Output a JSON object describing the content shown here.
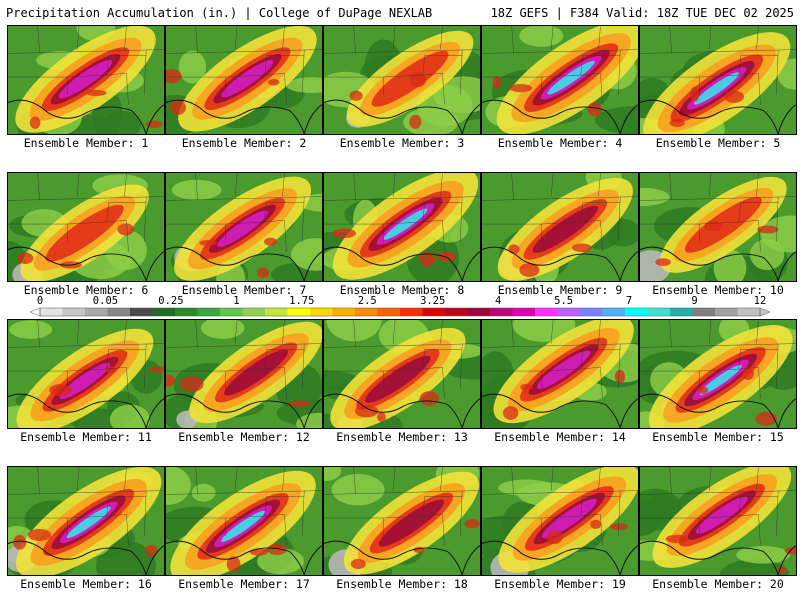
{
  "header": {
    "title": "Precipitation Accumulation (in.) | College of DuPage NEXLAB",
    "run_info": "18Z GEFS | F384 Valid: 18Z TUE DEC 02 2025"
  },
  "colorbar": {
    "labels": [
      "0",
      "0.05",
      "0.25",
      "1",
      "1.75",
      "2.5",
      "3.25",
      "4",
      "5.5",
      "7",
      "9",
      "12"
    ],
    "colors": [
      "#e3e3e3",
      "#c6c6c6",
      "#a8a8a8",
      "#878787",
      "#4a4a4a",
      "#1f6b21",
      "#2a8a2a",
      "#3ba83b",
      "#5fc84a",
      "#8fd450",
      "#c4e838",
      "#ffff00",
      "#ffd700",
      "#ffb000",
      "#ff8c00",
      "#ff6000",
      "#ff3000",
      "#e00000",
      "#c00018",
      "#a0003c",
      "#c0007c",
      "#e000b8",
      "#ff33ff",
      "#c060ff",
      "#8080ff",
      "#4cb0ff",
      "#00ffff",
      "#40e0d0",
      "#20b2aa",
      "#808080",
      "#a0a0a0",
      "#c0c0c0"
    ]
  },
  "members": [
    {
      "label": "Ensemble Member: 1",
      "intensity": 0.7
    },
    {
      "label": "Ensemble Member: 2",
      "intensity": 0.65
    },
    {
      "label": "Ensemble Member: 3",
      "intensity": 0.3
    },
    {
      "label": "Ensemble Member: 4",
      "intensity": 0.95
    },
    {
      "label": "Ensemble Member: 5",
      "intensity": 0.9
    },
    {
      "label": "Ensemble Member: 6",
      "intensity": 0.35
    },
    {
      "label": "Ensemble Member: 7",
      "intensity": 0.6
    },
    {
      "label": "Ensemble Member: 8",
      "intensity": 0.85
    },
    {
      "label": "Ensemble Member: 9",
      "intensity": 0.55
    },
    {
      "label": "Ensemble Member: 10",
      "intensity": 0.3
    },
    {
      "label": "Ensemble Member: 11",
      "intensity": 0.6
    },
    {
      "label": "Ensemble Member: 12",
      "intensity": 0.5
    },
    {
      "label": "Ensemble Member: 13",
      "intensity": 0.55
    },
    {
      "label": "Ensemble Member: 14",
      "intensity": 0.7
    },
    {
      "label": "Ensemble Member: 15",
      "intensity": 0.8
    },
    {
      "label": "Ensemble Member: 16",
      "intensity": 0.85
    },
    {
      "label": "Ensemble Member: 17",
      "intensity": 0.85
    },
    {
      "label": "Ensemble Member: 18",
      "intensity": 0.55
    },
    {
      "label": "Ensemble Member: 19",
      "intensity": 0.75
    },
    {
      "label": "Ensemble Member: 20",
      "intensity": 0.65
    }
  ]
}
